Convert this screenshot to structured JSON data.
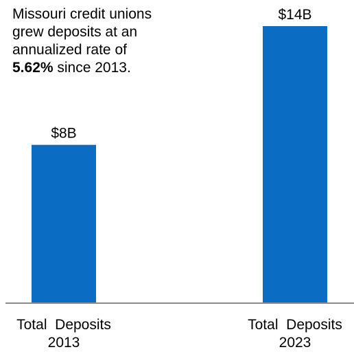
{
  "annotation": {
    "line1": "Missouri credit unions",
    "line2": "grew deposits at an",
    "line3": "annualized  rate of",
    "rate": "5.62%",
    "line4_rest": " since 2013."
  },
  "colors": {
    "bar": "#0a6cc2",
    "axis": "#8c8c8c",
    "text": "#000000"
  },
  "chart_data": {
    "type": "bar",
    "categories": [
      [
        "Total  Deposits",
        "2013"
      ],
      [
        "Total  Deposits",
        "2023"
      ]
    ],
    "values": [
      8,
      14
    ],
    "value_labels": [
      "$8B",
      "$14B"
    ],
    "ylim": [
      0,
      15
    ],
    "title": "",
    "xlabel": "",
    "ylabel": "",
    "grid": false
  }
}
